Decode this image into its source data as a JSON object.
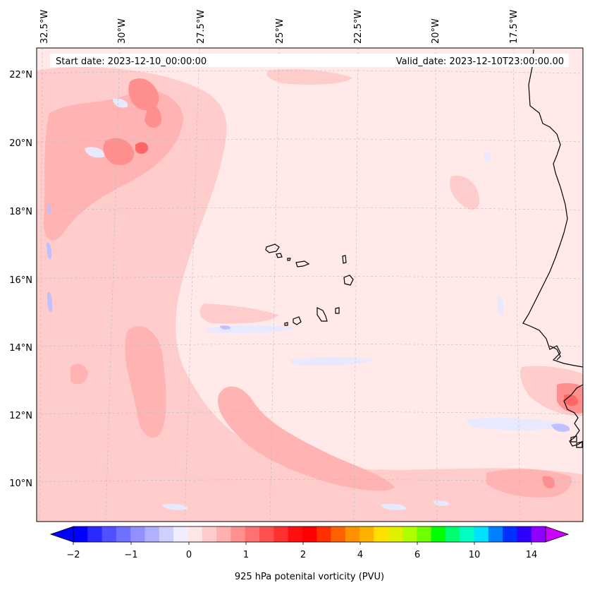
{
  "header": {
    "start_date": "Start date: 2023-12-10_00:00:00",
    "valid_date": "Valid_date: 2023-12-10T23:00:00.00"
  },
  "axes": {
    "lon_labels": [
      "32.5°W",
      "30°W",
      "27.5°W",
      "25°W",
      "22.5°W",
      "20°W",
      "17.5°W"
    ],
    "lat_labels": [
      "22°N",
      "20°N",
      "18°N",
      "16°N",
      "14°N",
      "12°N",
      "10°N"
    ]
  },
  "colorbar": {
    "title": "925 hPa potenital vorticity (PVU)",
    "ticks": [
      "−2",
      "−1",
      "0",
      "1",
      "2",
      "4",
      "6",
      "10",
      "14"
    ],
    "colors": [
      "#0000ff",
      "#2a2aff",
      "#5050ff",
      "#7070ff",
      "#9090ff",
      "#b0b0ff",
      "#d0d0ff",
      "#eeeeff",
      "#ffe6e6",
      "#ffcccc",
      "#ffb0b0",
      "#ff9090",
      "#ff7070",
      "#ff5050",
      "#ff3030",
      "#ff1010",
      "#ff0000",
      "#ff3000",
      "#ff6000",
      "#ff9000",
      "#ffb000",
      "#ffe000",
      "#e0f000",
      "#b0ff00",
      "#70ff00",
      "#00ff00",
      "#00ff70",
      "#00ffc0",
      "#00e0ff",
      "#0080ff",
      "#0030ff",
      "#3000ff",
      "#9000ff"
    ],
    "under_color": "#0000ff",
    "over_color": "#cc00ff"
  },
  "map": {
    "background": "#ffe9e9",
    "light_contour": "#ffcccc",
    "mid_contour": "#ffb3b3",
    "strong_contour": "#ff8f8f",
    "peak_contour": "#ff6666",
    "negative_contour": "#e8e8ff",
    "negative_strong": "#c0c0ff",
    "coastline": "#000000"
  }
}
